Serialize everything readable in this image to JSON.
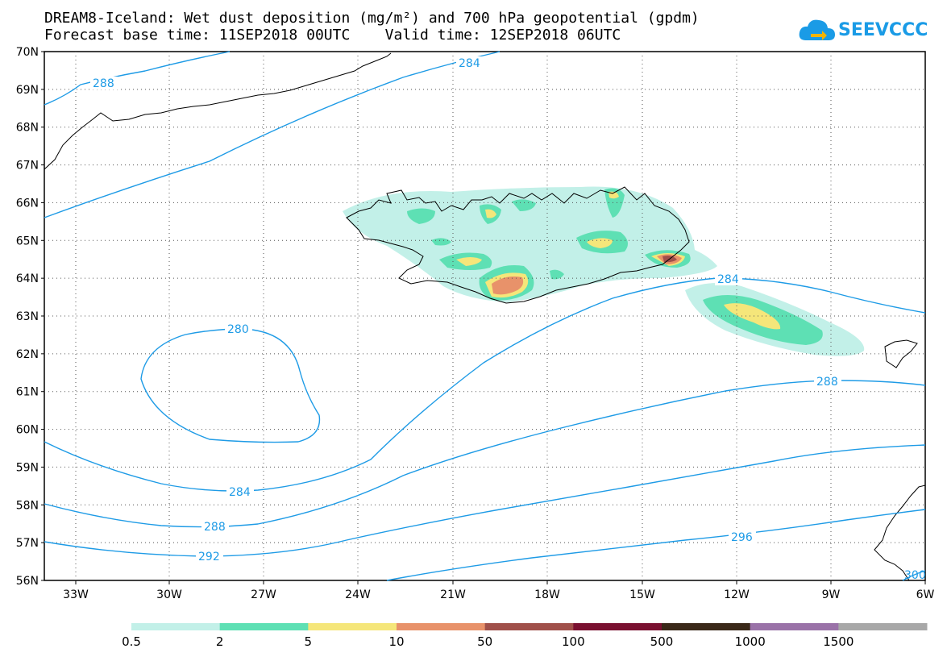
{
  "title": {
    "line1": "DREAM8-Iceland: Wet dust deposition (mg/m²) and 700 hPa geopotential (gpdm)",
    "line2": "Forecast base time: 11SEP2018 00UTC    Valid time: 12SEP2018 06UTC"
  },
  "logo": {
    "text": "SEEVCCC",
    "icon": "cloud-logo-icon"
  },
  "axes": {
    "lat_labels": [
      "70N",
      "69N",
      "68N",
      "67N",
      "66N",
      "65N",
      "64N",
      "63N",
      "62N",
      "61N",
      "60N",
      "59N",
      "58N",
      "57N",
      "56N"
    ],
    "lon_labels": [
      "33W",
      "30W",
      "27W",
      "24W",
      "21W",
      "18W",
      "15W",
      "12W",
      "9W",
      "6W"
    ]
  },
  "contours": {
    "color": "#1e9be6",
    "labels": [
      "288",
      "284",
      "280",
      "284",
      "288",
      "292",
      "284",
      "288",
      "296",
      "300"
    ]
  },
  "legend": {
    "labels": [
      "0.5",
      "2",
      "5",
      "10",
      "50",
      "100",
      "500",
      "1000",
      "1500"
    ],
    "colors": [
      "#c2f0e8",
      "#5ee0b4",
      "#f5e67a",
      "#e8926a",
      "#a0504a",
      "#7a1030",
      "#3a2818",
      "#9a72a8",
      "#a8a8a8"
    ]
  }
}
